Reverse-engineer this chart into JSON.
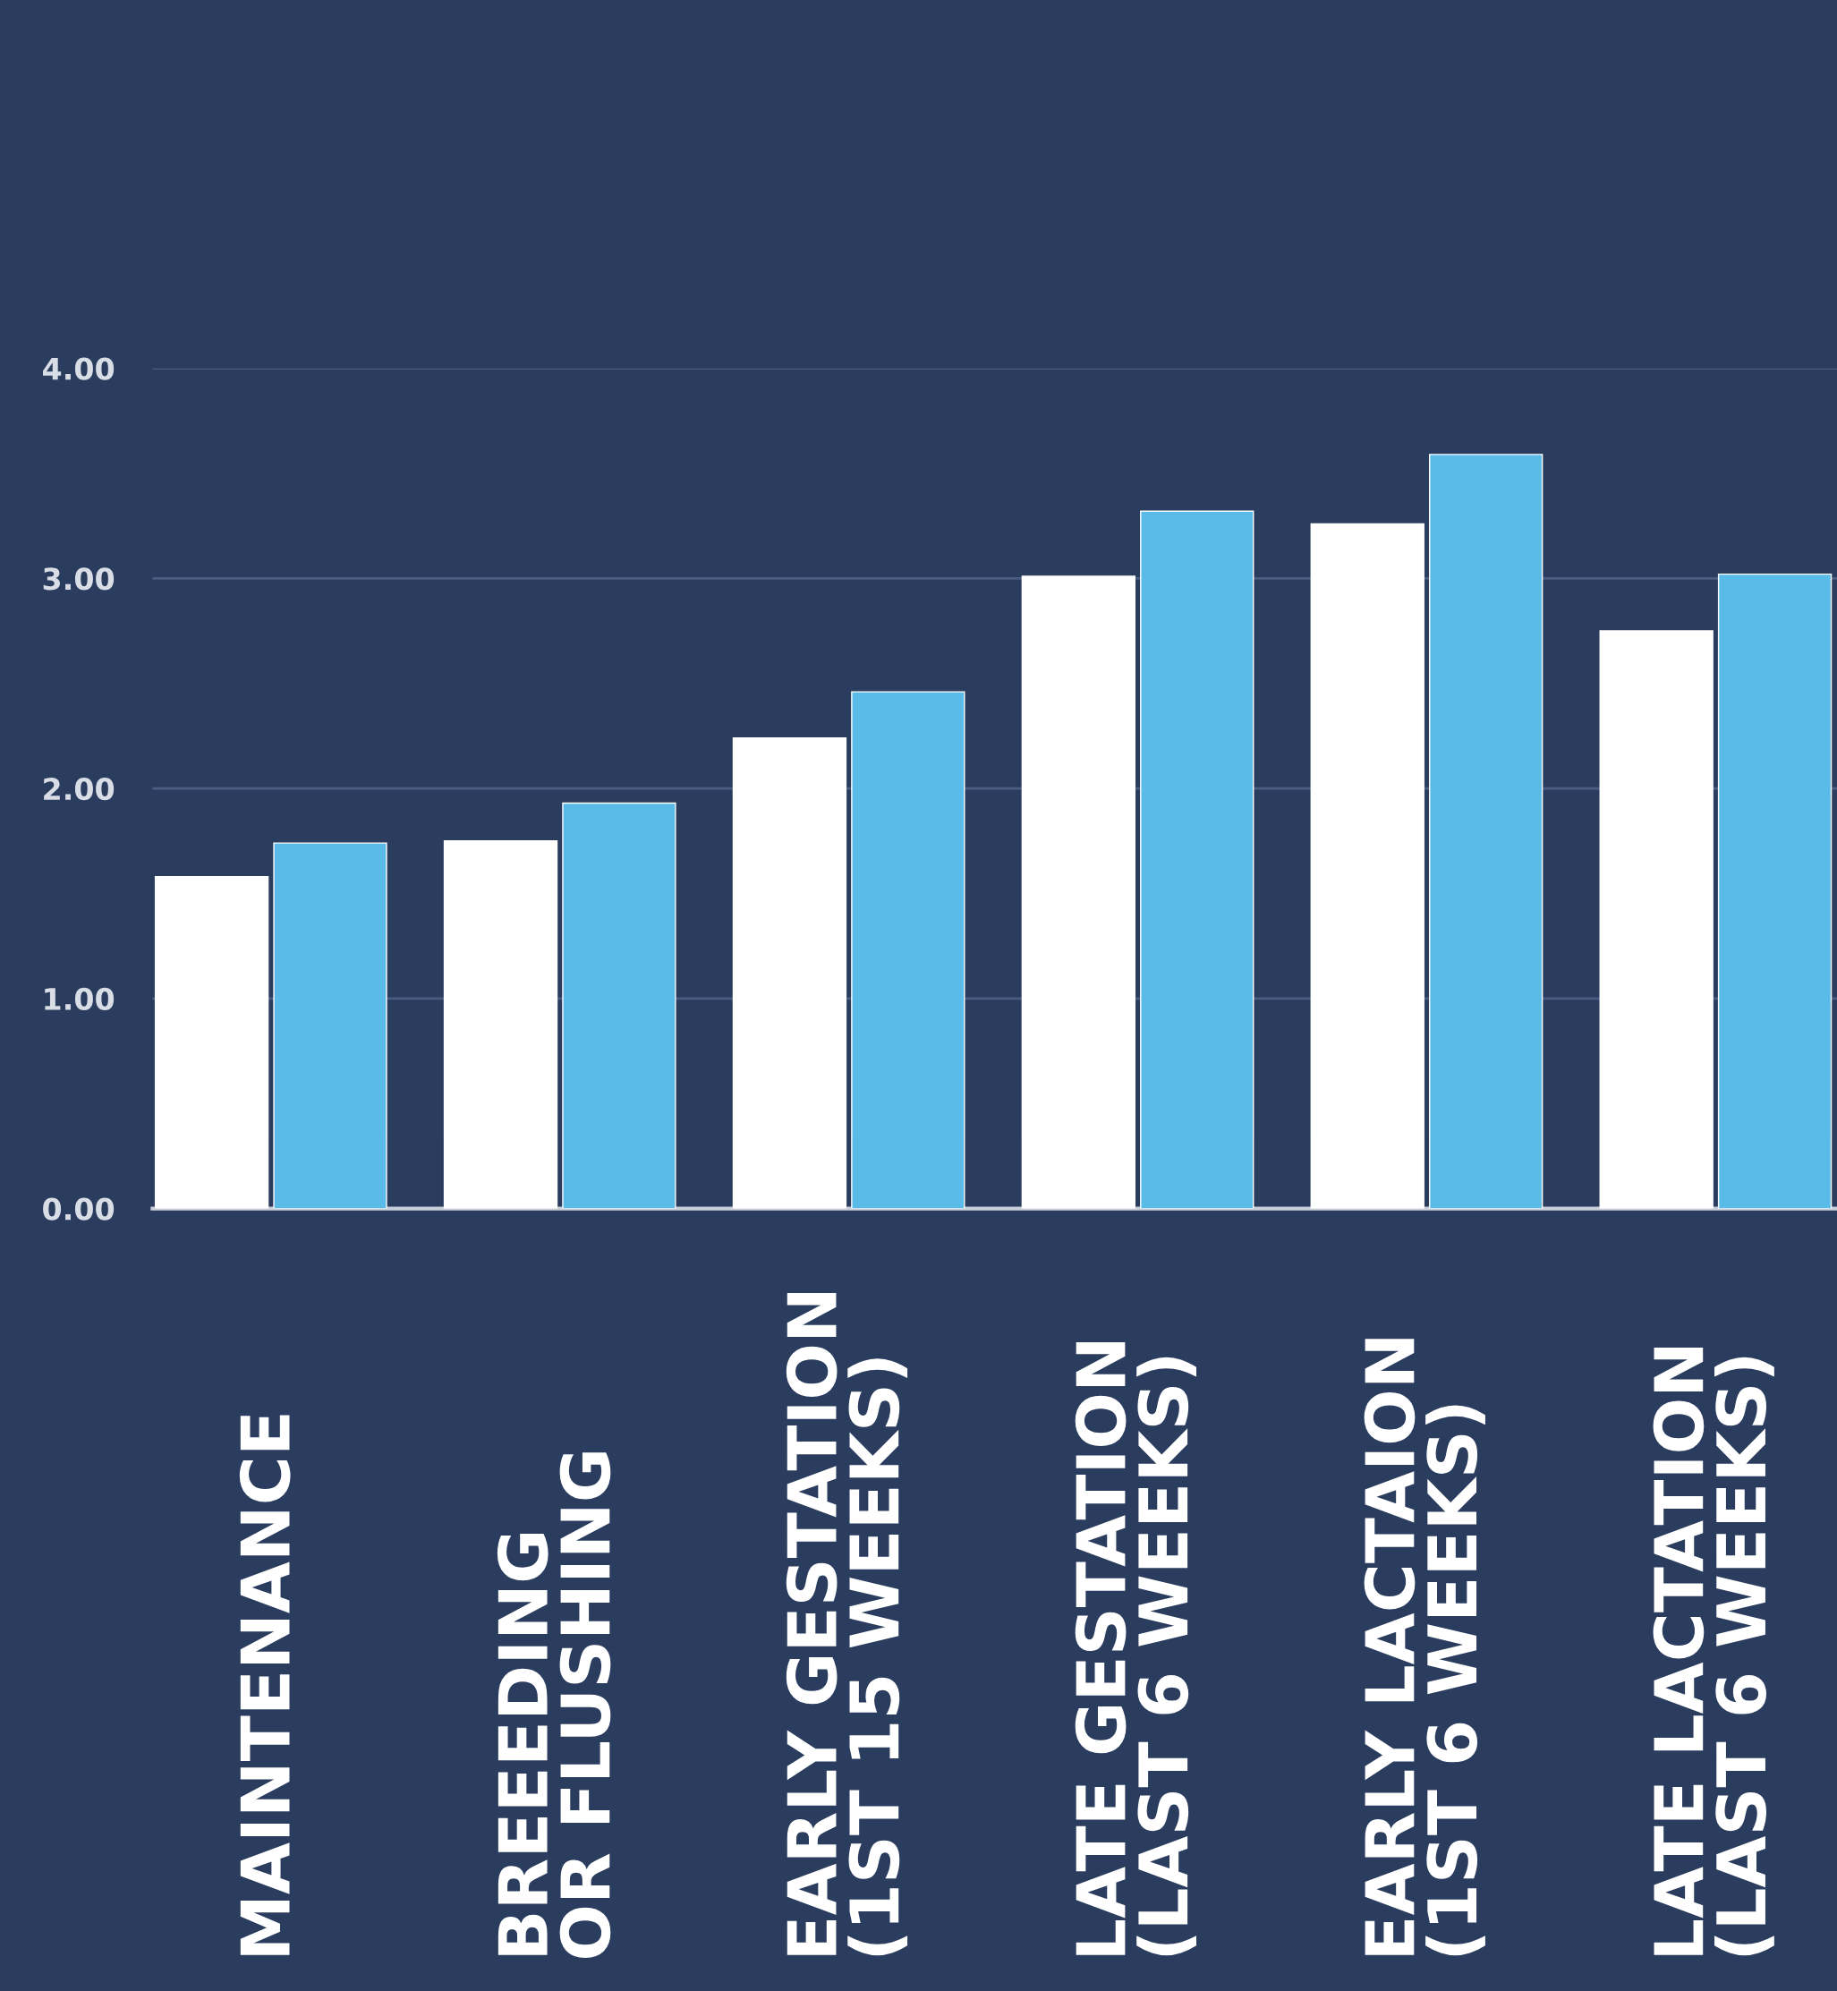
{
  "chart_data": {
    "type": "bar",
    "categories": [
      "MAINTENANCE",
      "BREEEDING\nOR FLUSHING",
      "EARLY GESTATION\n(1ST 15 WEEKS)",
      "LATE GESTATION\n(LAST 6 WEEKS)",
      "EARLY LACTAION\n(1ST 6 WEEKS)",
      "LATE LACTATION\n(LAST 6 WEEKS)"
    ],
    "series": [
      {
        "color": "#ffffff",
        "values": [
          1.58,
          1.75,
          2.24,
          3.01,
          3.26,
          2.75
        ]
      },
      {
        "color": "#5bbbe8",
        "values": [
          1.74,
          1.93,
          2.46,
          3.32,
          3.59,
          3.02
        ]
      }
    ],
    "ylim": [
      0,
      4
    ],
    "yticks": [
      {
        "value": 0,
        "label": "0.00"
      },
      {
        "value": 1,
        "label": "1.00"
      },
      {
        "value": 2,
        "label": "2.00"
      },
      {
        "value": 3,
        "label": "3.00"
      },
      {
        "value": 4,
        "label": "4.00"
      }
    ],
    "grid": "y"
  }
}
